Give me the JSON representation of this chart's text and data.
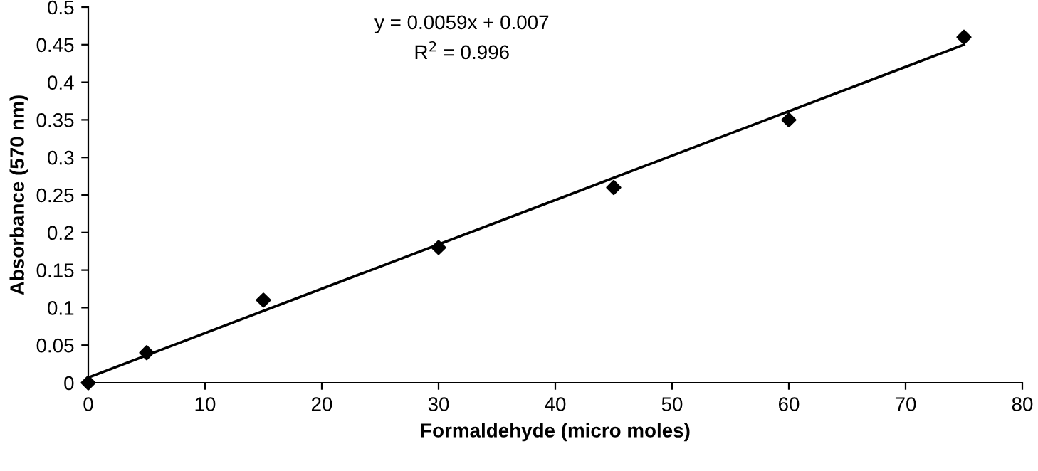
{
  "chart_data": {
    "type": "scatter",
    "xlabel": "Formaldehyde (micro moles)",
    "ylabel": "Absorbance (570 nm)",
    "annotations": [
      "y = 0.0059x + 0.007",
      "R$^{2}$ = 0.996"
    ],
    "series": [
      {
        "color": "#000000",
        "marker": "diamond",
        "x": [
          0,
          5,
          15,
          30,
          45,
          60,
          75
        ],
        "values": [
          0,
          0.04,
          0.11,
          0.18,
          0.26,
          0.35,
          0.46
        ]
      },
      {
        "type": "line",
        "color": "#000000",
        "line_style": "solid",
        "x": [
          0,
          75
        ],
        "values": [
          0.007,
          0.45
        ]
      }
    ],
    "xlim": [
      0,
      80
    ],
    "xticks": [
      0,
      10,
      20,
      30,
      40,
      50,
      60,
      70,
      80
    ],
    "ylim": [
      0,
      0.5
    ],
    "yticks": [
      0,
      0.05,
      0.1,
      0.15,
      0.2,
      0.25,
      0.3,
      0.35,
      0.4,
      0.45,
      0.5
    ],
    "grid": false,
    "legend": false
  }
}
